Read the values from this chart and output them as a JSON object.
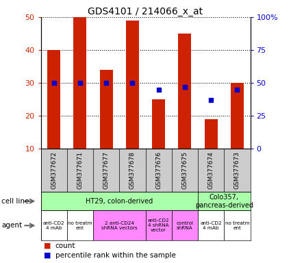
{
  "title": "GDS4101 / 214066_x_at",
  "samples": [
    "GSM377672",
    "GSM377671",
    "GSM377677",
    "GSM377678",
    "GSM377676",
    "GSM377675",
    "GSM377674",
    "GSM377673"
  ],
  "counts": [
    40,
    50,
    34,
    49,
    25,
    45,
    19,
    30
  ],
  "percentile_ranks": [
    50,
    50,
    50,
    50,
    45,
    47,
    37,
    45
  ],
  "bar_color": "#cc2200",
  "dot_color": "#0000cc",
  "ylim_left": [
    10,
    50
  ],
  "ylim_right": [
    0,
    100
  ],
  "yticks_left": [
    10,
    20,
    30,
    40,
    50
  ],
  "yticks_right": [
    0,
    25,
    50,
    75,
    100
  ],
  "ytick_labels_right": [
    "0",
    "25",
    "50",
    "75",
    "100%"
  ],
  "left_axis_color": "#cc2200",
  "right_axis_color": "#0000cc",
  "sample_bg_color": "#cccccc",
  "cell_line_color": "#aaffaa",
  "agent_pink_color": "#ff88ff",
  "agent_white_color": "#ffffff",
  "legend_count_color": "#cc2200",
  "legend_percentile_color": "#0000cc",
  "cell_groups": [
    {
      "label": "HT29, colon-derived",
      "start": 0,
      "end": 6
    },
    {
      "label": "Colo357,\npancreas-derived",
      "start": 6,
      "end": 8
    }
  ],
  "agent_groups": [
    {
      "label": "anti-CD2\n4 mAb",
      "start": 0,
      "end": 1,
      "pink": false
    },
    {
      "label": "no treatm\nent",
      "start": 1,
      "end": 2,
      "pink": false
    },
    {
      "label": "2 anti-CD24\nshRNA vectors",
      "start": 2,
      "end": 4,
      "pink": true
    },
    {
      "label": "anti-CD2\n4 shRNA\nvector",
      "start": 4,
      "end": 5,
      "pink": true
    },
    {
      "label": "control\nshRNA",
      "start": 5,
      "end": 6,
      "pink": true
    },
    {
      "label": "anti-CD2\n4 mAb",
      "start": 6,
      "end": 7,
      "pink": false
    },
    {
      "label": "no treatm\nent",
      "start": 7,
      "end": 8,
      "pink": false
    }
  ]
}
